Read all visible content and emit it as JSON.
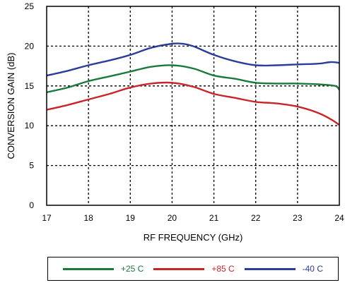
{
  "chart_data": {
    "type": "line",
    "title": "",
    "xlabel": "RF FREQUENCY (GHz)",
    "ylabel": "CONVERSION GAIN (dB)",
    "xlim": [
      17,
      24
    ],
    "ylim": [
      0,
      25
    ],
    "xticks": [
      "17",
      "18",
      "19",
      "20",
      "21",
      "22",
      "23",
      "24"
    ],
    "yticks": [
      "0",
      "5",
      "10",
      "15",
      "20",
      "25"
    ],
    "grid": "dashed",
    "legend_position": "bottom",
    "series": [
      {
        "name": "+25 C",
        "color": "#1a7a3c",
        "x": [
          17,
          17.5,
          18,
          18.5,
          19,
          19.5,
          20,
          20.5,
          21,
          21.5,
          22,
          22.5,
          23,
          23.5,
          23.9,
          24
        ],
        "y": [
          14.2,
          14.8,
          15.6,
          16.2,
          16.8,
          17.4,
          17.6,
          17.2,
          16.3,
          15.9,
          15.4,
          15.3,
          15.3,
          15.2,
          15.0,
          14.5
        ]
      },
      {
        "name": "+85 C",
        "color": "#c8252a",
        "x": [
          17,
          17.5,
          18,
          18.5,
          19,
          19.5,
          20,
          20.5,
          21,
          21.5,
          22,
          22.5,
          23,
          23.5,
          23.8,
          24
        ],
        "y": [
          12.0,
          12.6,
          13.3,
          14.0,
          14.8,
          15.3,
          15.4,
          14.9,
          14.0,
          13.5,
          13.0,
          12.8,
          12.4,
          11.6,
          10.8,
          10.1
        ]
      },
      {
        "name": "-40 C",
        "color": "#2a3d9a",
        "x": [
          17,
          17.5,
          18,
          18.5,
          19,
          19.5,
          20,
          20.25,
          20.5,
          21,
          21.5,
          22,
          22.5,
          23,
          23.5,
          23.8,
          24
        ],
        "y": [
          16.3,
          16.9,
          17.6,
          18.2,
          18.9,
          19.8,
          20.3,
          20.3,
          20.0,
          18.9,
          18.1,
          17.6,
          17.6,
          17.7,
          17.8,
          18.0,
          17.9
        ]
      }
    ]
  }
}
